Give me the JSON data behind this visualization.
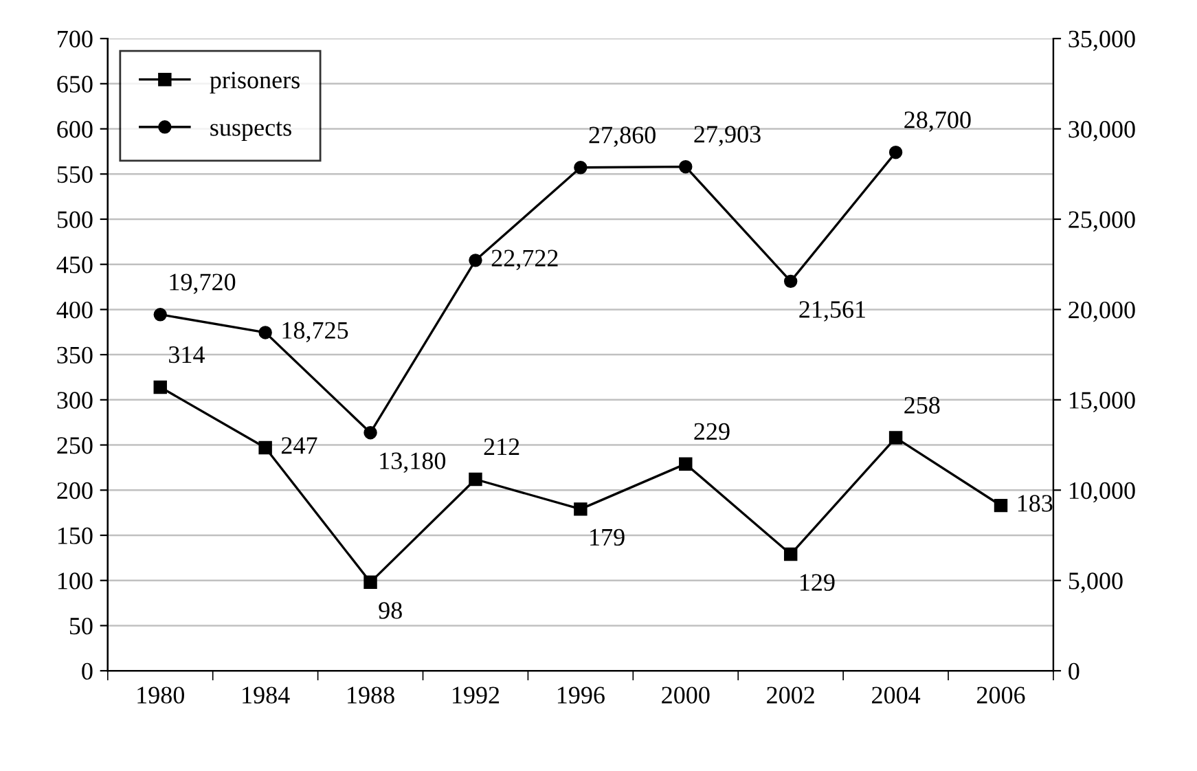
{
  "chart_data": {
    "type": "line",
    "categories": [
      "1980",
      "1984",
      "1988",
      "1992",
      "1996",
      "2000",
      "2002",
      "2004",
      "2006"
    ],
    "series": [
      {
        "name": "prisoners",
        "color": "#000000",
        "marker": "square",
        "values": [
          314,
          247,
          98,
          212,
          179,
          229,
          129,
          258,
          183
        ]
      },
      {
        "name": "suspects",
        "color": "#000000",
        "marker": "circle",
        "axis": "y2",
        "values": [
          19720,
          18725,
          13180,
          22722,
          27860,
          27903,
          21561,
          28700,
          null
        ]
      }
    ],
    "ylim": [
      0,
      700
    ],
    "yticks": [
      0,
      50,
      100,
      150,
      200,
      250,
      300,
      350,
      400,
      450,
      500,
      550,
      600,
      650,
      700
    ],
    "y2lim": [
      0,
      35000
    ],
    "y2ticks": [
      0,
      {
        "value": 5000,
        "label": "5,000"
      },
      {
        "value": 10000,
        "label": "10,000"
      },
      {
        "value": 15000,
        "label": "15,000"
      },
      {
        "value": 20000,
        "label": "20,000"
      },
      {
        "value": 25000,
        "label": "25,000"
      },
      {
        "value": 30000,
        "label": "30,000"
      },
      {
        "value": 35000,
        "label": "35,000"
      }
    ],
    "value_labels": [
      [
        "314",
        "247",
        "98",
        "212",
        "179",
        "229",
        "129",
        "258",
        "183"
      ],
      [
        "19,720",
        "18,725",
        "13,180",
        "22,722",
        "27,860",
        "27,903",
        "21,561",
        "28,700",
        null
      ]
    ],
    "grid": "y",
    "legend": "top left",
    "line_style": "solid"
  }
}
